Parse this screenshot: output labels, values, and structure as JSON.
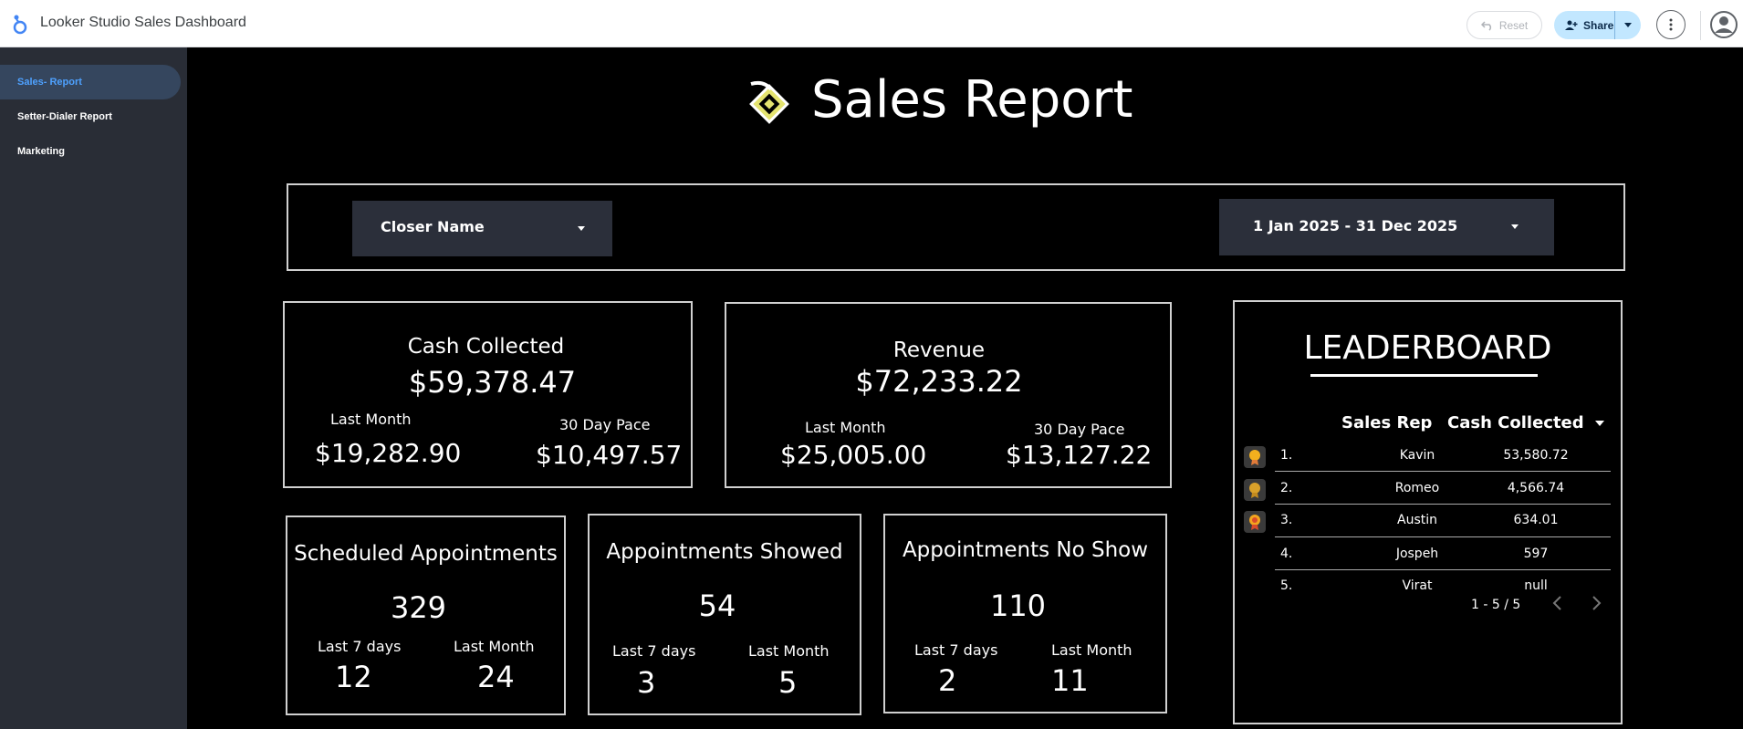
{
  "app": {
    "title": "Looker Studio Sales Dashboard"
  },
  "toolbar": {
    "reset_label": "Reset",
    "share_label": "Share"
  },
  "sidebar": {
    "items": [
      {
        "label": "Sales- Report",
        "active": true
      },
      {
        "label": "Setter-Dialer Report",
        "active": false
      },
      {
        "label": "Marketing",
        "active": false
      }
    ]
  },
  "report": {
    "title": "Sales Report",
    "filters": {
      "closer_label": "Closer Name",
      "date_range": "1 Jan 2025 - 31 Dec 2025"
    },
    "cash_collected": {
      "title": "Cash Collected",
      "value": "$59,378.47",
      "last_month_label": "Last Month",
      "last_month_value": "$19,282.90",
      "pace_label": "30 Day Pace",
      "pace_value": "$10,497.57"
    },
    "revenue": {
      "title": "Revenue",
      "value": "$72,233.22",
      "last_month_label": "Last Month",
      "last_month_value": "$25,005.00",
      "pace_label": "30 Day Pace",
      "pace_value": "$13,127.22"
    },
    "scheduled": {
      "title": "Scheduled Appointments",
      "value": "329",
      "last7_label": "Last 7 days",
      "last7_value": "12",
      "last_month_label": "Last Month",
      "last_month_value": "24"
    },
    "showed": {
      "title": "Appointments Showed",
      "value": "54",
      "last7_label": "Last 7 days",
      "last7_value": "3",
      "last_month_label": "Last Month",
      "last_month_value": "5"
    },
    "no_show": {
      "title": "Appointments No Show",
      "value": "110",
      "last7_label": "Last 7 days",
      "last7_value": "2",
      "last_month_label": "Last Month",
      "last_month_value": "11"
    },
    "leaderboard": {
      "title": "LEADERBOARD",
      "col_rep": "Sales Rep",
      "col_cash": "Cash Collected",
      "rows": [
        {
          "rank": "1.",
          "rep": "Kavin",
          "cash": "53,580.72",
          "medal": "gold-medal-icon"
        },
        {
          "rank": "2.",
          "rep": "Romeo",
          "cash": "4,566.74",
          "medal": "silver-medal-icon"
        },
        {
          "rank": "3.",
          "rep": "Austin",
          "cash": "634.01",
          "medal": "bronze-medal-icon"
        },
        {
          "rank": "4.",
          "rep": "Jospeh",
          "cash": "597",
          "medal": ""
        },
        {
          "rank": "5.",
          "rep": "Virat",
          "cash": "null",
          "medal": ""
        }
      ],
      "pagination": "1 - 5 / 5"
    }
  },
  "colors": {
    "background": "#000000",
    "sidebar": "#292d36",
    "active_nav": "#35465e",
    "active_text": "#4ea1ff",
    "dropdown": "#2b2f3a",
    "share_button": "#c2e7ff",
    "border": "#d0d0d0"
  }
}
